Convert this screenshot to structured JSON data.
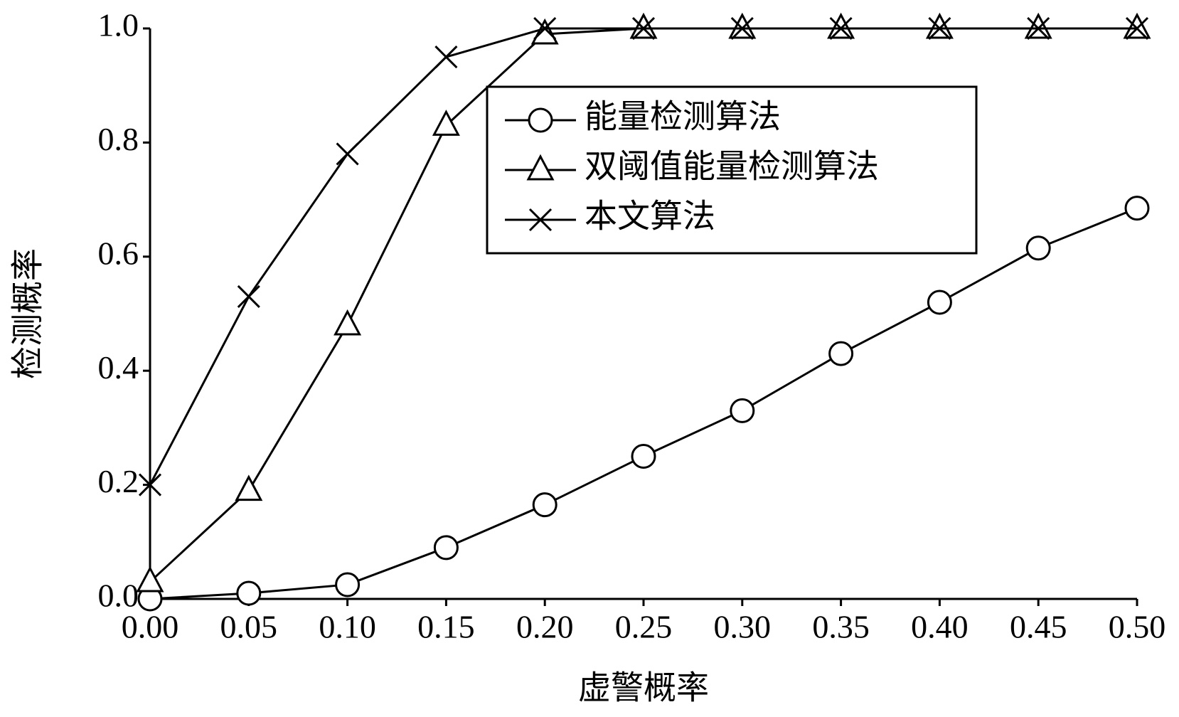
{
  "chart_data": {
    "type": "line",
    "xlabel": "虚警概率",
    "ylabel": "检测概率",
    "x": [
      0,
      0.05,
      0.1,
      0.15,
      0.2,
      0.25,
      0.3,
      0.35,
      0.4,
      0.45,
      0.5
    ],
    "series": [
      {
        "name": "能量检测算法",
        "color": "#000000",
        "marker": "circle",
        "values": [
          0,
          0.01,
          0.025,
          0.09,
          0.165,
          0.25,
          0.33,
          0.43,
          0.52,
          0.615,
          0.685
        ]
      },
      {
        "name": "双阈值能量检测算法",
        "color": "#000000",
        "marker": "triangle",
        "values": [
          0.03,
          0.19,
          0.48,
          0.83,
          0.99,
          1.0,
          1.0,
          1.0,
          1.0,
          1.0,
          1.0
        ]
      },
      {
        "name": "本文算法",
        "color": "#000000",
        "marker": "x",
        "values": [
          0.2,
          0.53,
          0.78,
          0.95,
          1.0,
          1.0,
          1.0,
          1.0,
          1.0,
          1.0,
          1.0
        ]
      }
    ],
    "xlim": [
      0,
      0.5
    ],
    "xticks": [
      {
        "value": 0,
        "label": "0.00"
      },
      0.05,
      {
        "value": 0.1,
        "label": "0.10"
      },
      0.15,
      {
        "value": 0.2,
        "label": "0.20"
      },
      0.25,
      {
        "value": 0.3,
        "label": "0.30"
      },
      0.35,
      {
        "value": 0.4,
        "label": "0.40"
      },
      0.45,
      {
        "value": 0.5,
        "label": "0.50"
      }
    ],
    "ylim": [
      0,
      1
    ],
    "yticks": [
      {
        "value": 0,
        "label": "0.0"
      },
      0.2,
      0.4,
      0.6,
      0.8,
      {
        "value": 1,
        "label": "1.0"
      }
    ],
    "grid": false
  }
}
